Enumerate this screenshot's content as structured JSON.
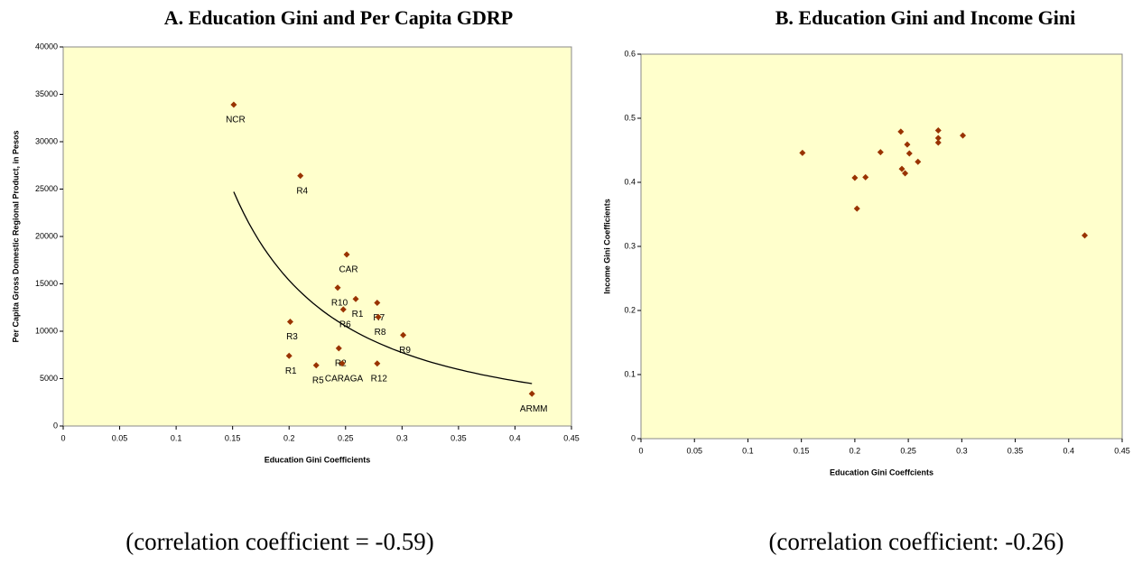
{
  "chart_data": [
    {
      "type": "scatter",
      "title": "A. Education Gini and Per Capita GDRP",
      "x_label": "Education Gini Coefficients",
      "y_label": "Per Capita Gross Domestic Regional Product, in Pesos",
      "caption": "(correlation coefficient = -0.59)",
      "color": "#993300",
      "background": "#ffffcc",
      "trendline": "power",
      "x": [
        0.151,
        0.21,
        0.251,
        0.243,
        0.259,
        0.248,
        0.278,
        0.279,
        0.301,
        0.201,
        0.244,
        0.2,
        0.224,
        0.247,
        0.278,
        0.415
      ],
      "values": [
        33900,
        26400,
        18100,
        14600,
        13400,
        12300,
        13000,
        11500,
        9600,
        11000,
        8200,
        7400,
        6400,
        6600,
        6600,
        3400
      ],
      "point_labels": [
        "NCR",
        "R4",
        "CAR",
        "R10",
        "R1",
        "R6",
        "R7",
        "R8",
        "R9",
        "R3",
        "R2",
        "R1",
        "R5",
        "CARAGA",
        "R12",
        "ARMM"
      ],
      "xlim": [
        0,
        0.45
      ],
      "xticks": [
        0,
        0.05,
        0.1,
        0.15,
        0.2,
        0.25,
        0.3,
        0.35,
        0.4,
        0.45
      ],
      "ylim": [
        0,
        40000
      ],
      "yticks": [
        0,
        5000,
        10000,
        15000,
        20000,
        25000,
        30000,
        35000,
        40000
      ]
    },
    {
      "type": "scatter",
      "title": "B. Education Gini and Income Gini",
      "x_label": "Education Gini Coeffcients",
      "y_label": "Income Gini Coefficients",
      "caption": "(correlation coefficient: -0.26)",
      "color": "#993300",
      "background": "#ffffcc",
      "x": [
        0.151,
        0.2,
        0.202,
        0.21,
        0.224,
        0.243,
        0.244,
        0.247,
        0.249,
        0.251,
        0.259,
        0.278,
        0.278,
        0.278,
        0.301,
        0.415
      ],
      "values": [
        0.446,
        0.407,
        0.359,
        0.408,
        0.447,
        0.479,
        0.421,
        0.414,
        0.459,
        0.445,
        0.432,
        0.481,
        0.469,
        0.462,
        0.473,
        0.317
      ],
      "xlim": [
        0,
        0.45
      ],
      "xticks": [
        0,
        0.05,
        0.1,
        0.15,
        0.2,
        0.25,
        0.3,
        0.35,
        0.4,
        0.45
      ],
      "ylim": [
        0,
        0.6
      ],
      "yticks": [
        0,
        0.1,
        0.2,
        0.3,
        0.4,
        0.5,
        0.6
      ]
    }
  ]
}
